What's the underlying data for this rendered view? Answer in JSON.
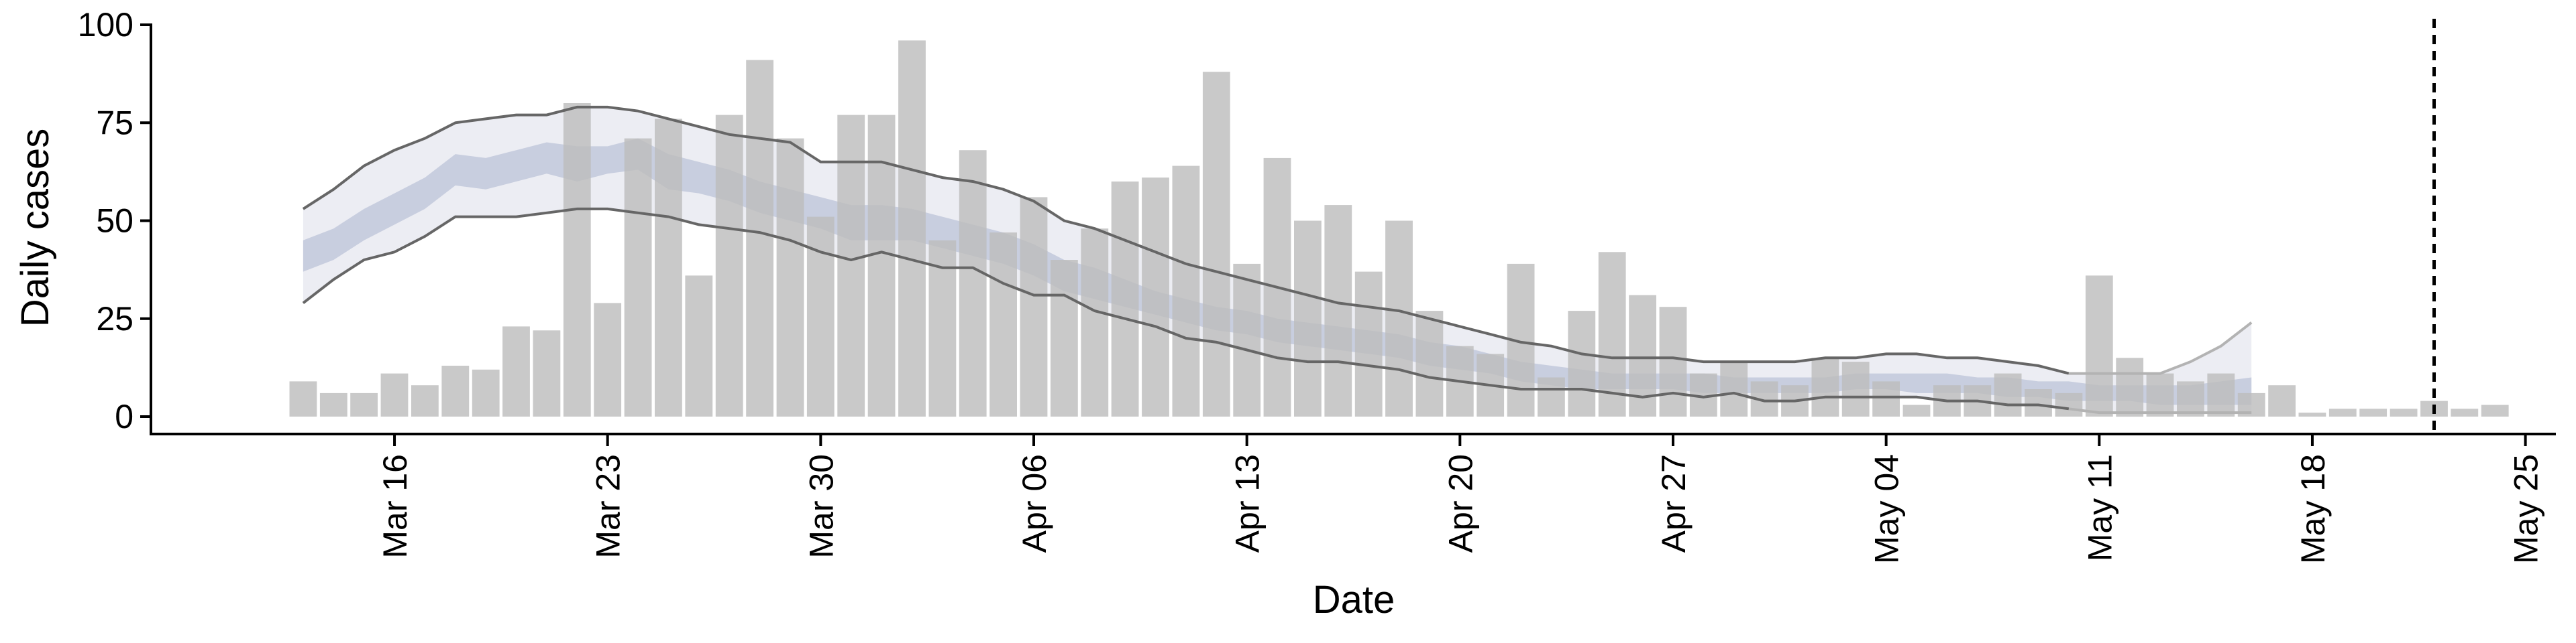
{
  "chart_data": {
    "type": "bar",
    "title": "",
    "xlabel": "Date",
    "ylabel": "Daily cases",
    "ylim": [
      0,
      100
    ],
    "y_ticks": [
      0,
      25,
      50,
      75,
      100
    ],
    "x_tick_labels": [
      "Mar 16",
      "Mar 23",
      "Mar 30",
      "Apr 06",
      "Apr 13",
      "Apr 20",
      "Apr 27",
      "May 04",
      "May 11",
      "May 18",
      "May 25"
    ],
    "x_tick_dates": [
      "2020-03-16",
      "2020-03-23",
      "2020-03-30",
      "2020-04-06",
      "2020-04-13",
      "2020-04-20",
      "2020-04-27",
      "2020-05-04",
      "2020-05-11",
      "2020-05-18",
      "2020-05-25"
    ],
    "x_range": [
      "2020-03-08",
      "2020-05-26"
    ],
    "grid": false,
    "legend": "none",
    "start_date": "2020-03-13",
    "bars": {
      "color": "#bdbdbd",
      "values": [
        9,
        6,
        6,
        11,
        8,
        13,
        12,
        23,
        22,
        80,
        29,
        71,
        76,
        36,
        77,
        91,
        71,
        51,
        77,
        77,
        96,
        45,
        68,
        47,
        56,
        40,
        48,
        60,
        61,
        64,
        88,
        39,
        66,
        50,
        54,
        37,
        50,
        27,
        18,
        16,
        39,
        10,
        27,
        42,
        31,
        28,
        11,
        14,
        9,
        8,
        15,
        14,
        9,
        3,
        8,
        8,
        11,
        7,
        6,
        36,
        15,
        11,
        9,
        11,
        6,
        8,
        1,
        2,
        2,
        2,
        4,
        2,
        3
      ]
    },
    "estimate": {
      "dates_start": "2020-03-13",
      "upper_90": [
        53,
        58,
        64,
        68,
        71,
        75,
        76,
        77,
        77,
        79,
        79,
        78,
        76,
        74,
        72,
        71,
        70,
        65,
        65,
        65,
        63,
        61,
        60,
        58,
        55,
        50,
        48,
        45,
        42,
        39,
        37,
        35,
        33,
        31,
        29,
        28,
        27,
        25,
        23,
        21,
        19,
        18,
        16,
        15,
        15,
        15,
        14,
        14,
        14,
        14,
        15,
        15,
        16,
        16,
        15,
        15,
        14,
        13,
        11,
        11,
        11,
        11,
        14,
        18,
        24
      ],
      "upper_50": [
        45,
        48,
        53,
        57,
        61,
        67,
        66,
        68,
        70,
        69,
        69,
        71,
        67,
        65,
        63,
        60,
        58,
        56,
        54,
        54,
        53,
        51,
        49,
        47,
        44,
        40,
        38,
        35,
        32,
        30,
        28,
        27,
        25,
        24,
        23,
        22,
        21,
        19,
        18,
        16,
        14,
        13,
        12,
        11,
        11,
        11,
        11,
        10,
        10,
        10,
        10,
        11,
        11,
        11,
        11,
        10,
        10,
        9,
        9,
        8,
        8,
        8,
        8,
        9,
        10
      ],
      "lower_50": [
        37,
        40,
        45,
        49,
        53,
        59,
        58,
        60,
        62,
        60,
        62,
        63,
        58,
        57,
        55,
        52,
        50,
        48,
        45,
        45,
        45,
        43,
        41,
        39,
        36,
        32,
        30,
        28,
        26,
        24,
        22,
        21,
        19,
        18,
        17,
        16,
        15,
        13,
        12,
        11,
        9,
        8,
        7,
        7,
        7,
        7,
        6,
        6,
        6,
        6,
        6,
        7,
        7,
        6,
        6,
        6,
        5,
        5,
        4,
        4,
        4,
        3,
        3,
        3,
        3
      ],
      "lower_90": [
        29,
        35,
        40,
        42,
        46,
        51,
        51,
        51,
        52,
        53,
        53,
        52,
        51,
        49,
        48,
        47,
        45,
        42,
        40,
        42,
        40,
        38,
        38,
        34,
        31,
        31,
        27,
        25,
        23,
        20,
        19,
        17,
        15,
        14,
        14,
        13,
        12,
        10,
        9,
        8,
        7,
        7,
        7,
        6,
        5,
        6,
        5,
        6,
        4,
        4,
        5,
        5,
        5,
        5,
        4,
        4,
        3,
        3,
        2,
        1,
        1,
        1,
        1,
        1,
        1
      ],
      "forecast_from": "2020-05-10",
      "color_band_90": "#e9eaf1",
      "color_band_50": "#c2c8da",
      "color_line": "#666666"
    },
    "vline_date": "2020-05-22",
    "vline_style": "dashed"
  }
}
